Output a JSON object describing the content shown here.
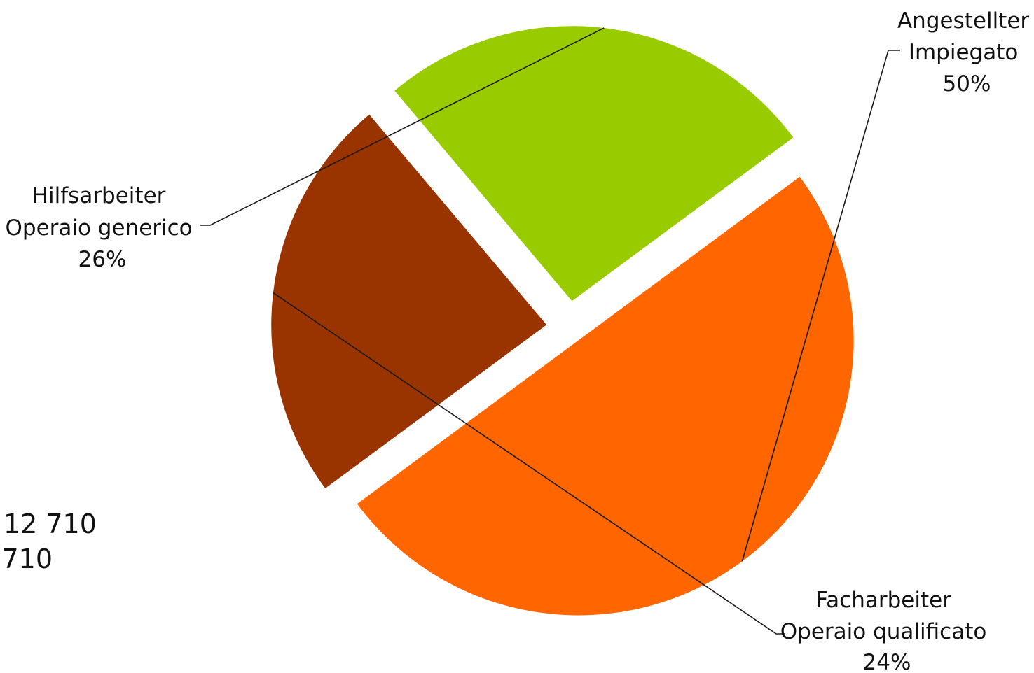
{
  "chart_data": {
    "type": "pie",
    "title": "",
    "exploded": true,
    "slices": [
      {
        "name": "Angestellter / Impiegato",
        "label_lines": [
          "Angestellter",
          "Impiegato"
        ],
        "percent_label": "50%",
        "value": 50,
        "color": "#FF6600"
      },
      {
        "name": "Facharbeiter / Operaio qualificato",
        "label_lines": [
          "Facharbeiter",
          "Operaio qualificato"
        ],
        "percent_label": "24%",
        "value": 24,
        "color": "#993300"
      },
      {
        "name": "Hilfsarbeiter / Operaio generico",
        "label_lines": [
          "Hilfsarbeiter",
          "Operaio generico"
        ],
        "percent_label": "26%",
        "value": 26,
        "color": "#99CC00"
      }
    ]
  },
  "side_note": {
    "line1": ": 12 710",
    "line2": "710"
  }
}
